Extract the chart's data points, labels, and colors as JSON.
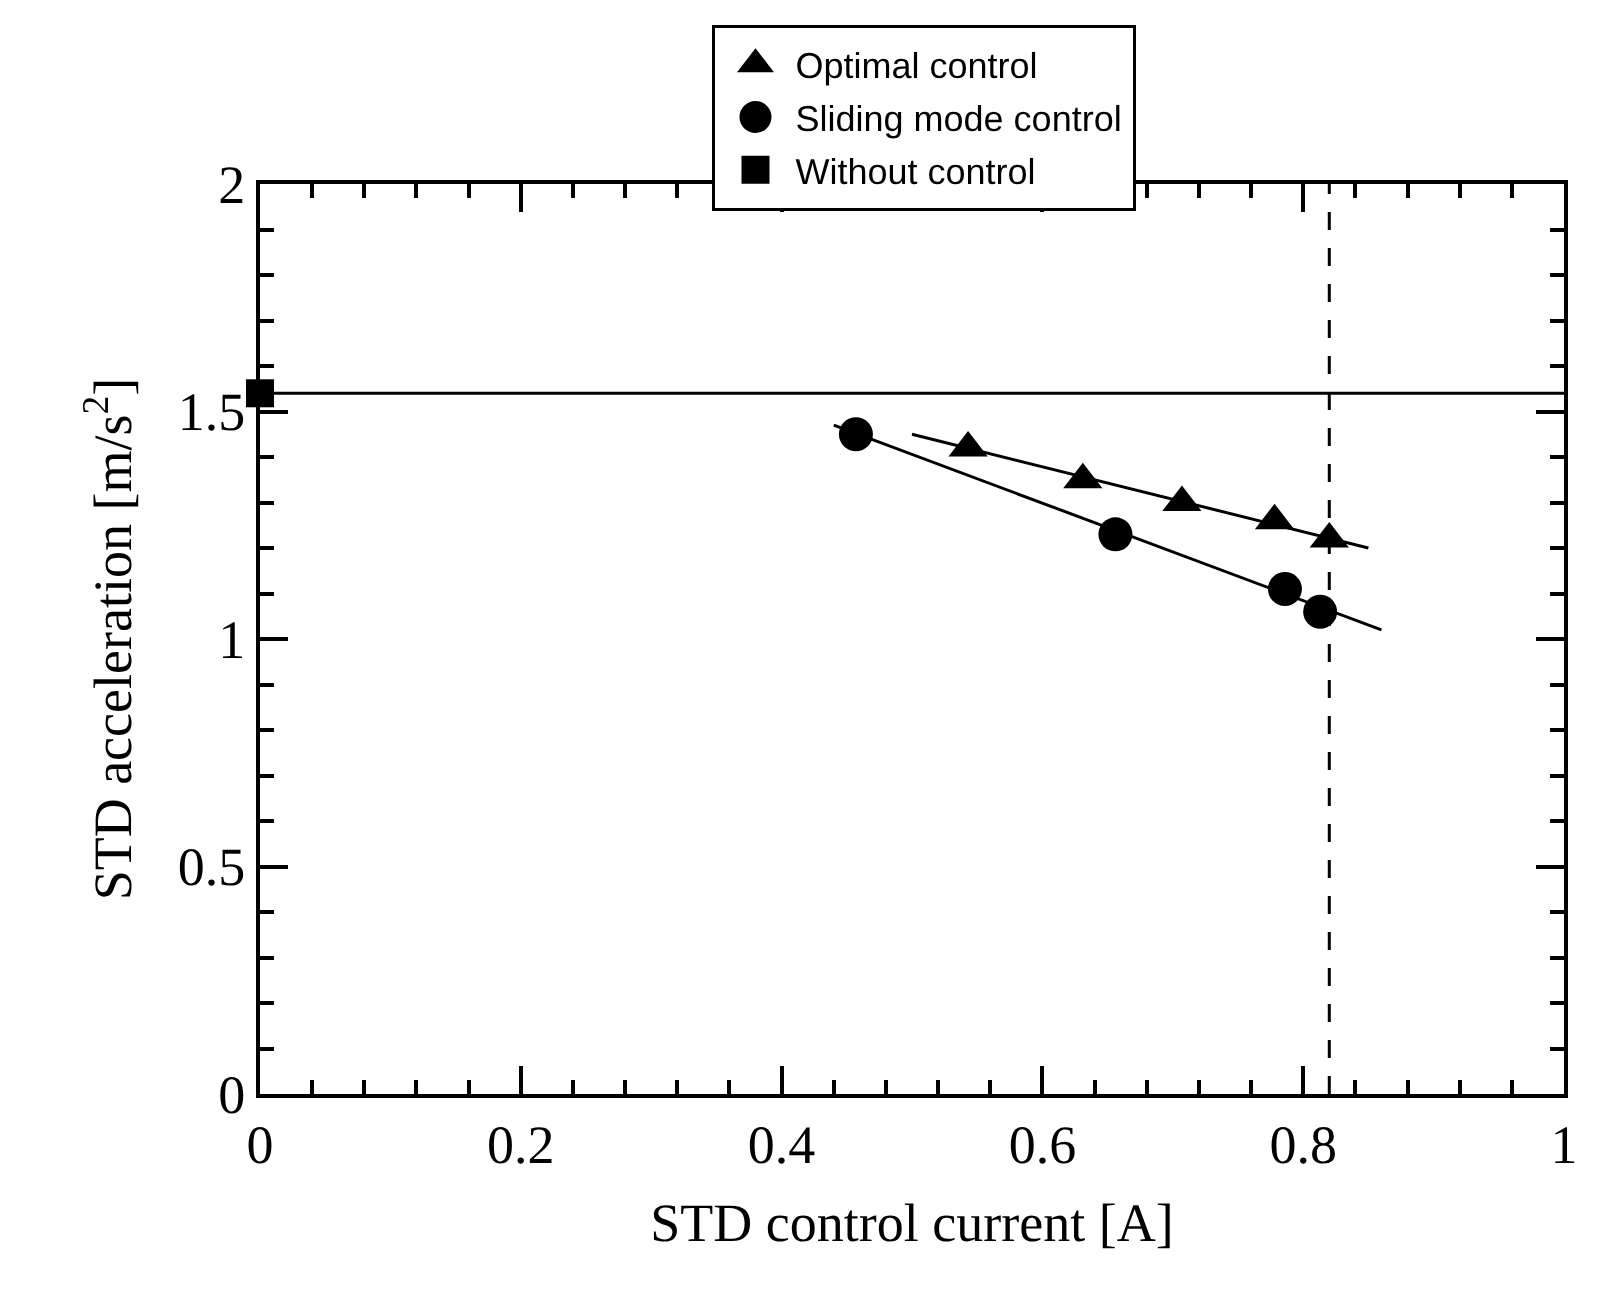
{
  "chart_data": {
    "type": "scatter",
    "xlabel": "STD control current [A]",
    "ylabel": "STD acceleration [m/s$^{2}$]",
    "xlim": [
      0,
      1
    ],
    "xticks": [
      0,
      0.2,
      0.4,
      0.6,
      0.8,
      1
    ],
    "ylim": [
      0,
      2
    ],
    "yticks": [
      0,
      0.5,
      1,
      1.5,
      2
    ],
    "grid": false,
    "legend": "top",
    "series": [
      {
        "name": "Optimal control",
        "color": "#000000",
        "marker": "triangle",
        "x": [
          0.543,
          0.631,
          0.707,
          0.778,
          0.82
        ],
        "values": [
          1.42,
          1.35,
          1.3,
          1.26,
          1.22
        ]
      },
      {
        "name": "Sliding mode control",
        "color": "#000000",
        "marker": "circle",
        "x": [
          0.457,
          0.656,
          0.786,
          0.813
        ],
        "values": [
          1.45,
          1.23,
          1.11,
          1.06
        ]
      },
      {
        "name": "Without control",
        "color": "#000000",
        "marker": "square",
        "x": [
          0
        ],
        "values": [
          1.54
        ]
      },
      {
        "type": "line",
        "color": "#000000",
        "marker": "none",
        "x": [
          0.5,
          0.85
        ],
        "values": [
          1.45,
          1.2
        ]
      },
      {
        "type": "line",
        "color": "#000000",
        "marker": "none",
        "x": [
          0.44,
          0.86
        ],
        "values": [
          1.47,
          1.02
        ]
      }
    ],
    "ref_lines": [
      {
        "axis": "y",
        "value": 1.54,
        "color": "#000000",
        "line_style": "solid"
      },
      {
        "axis": "x",
        "value": 0.82,
        "color": "#000000",
        "line_style": "dashed"
      }
    ]
  }
}
